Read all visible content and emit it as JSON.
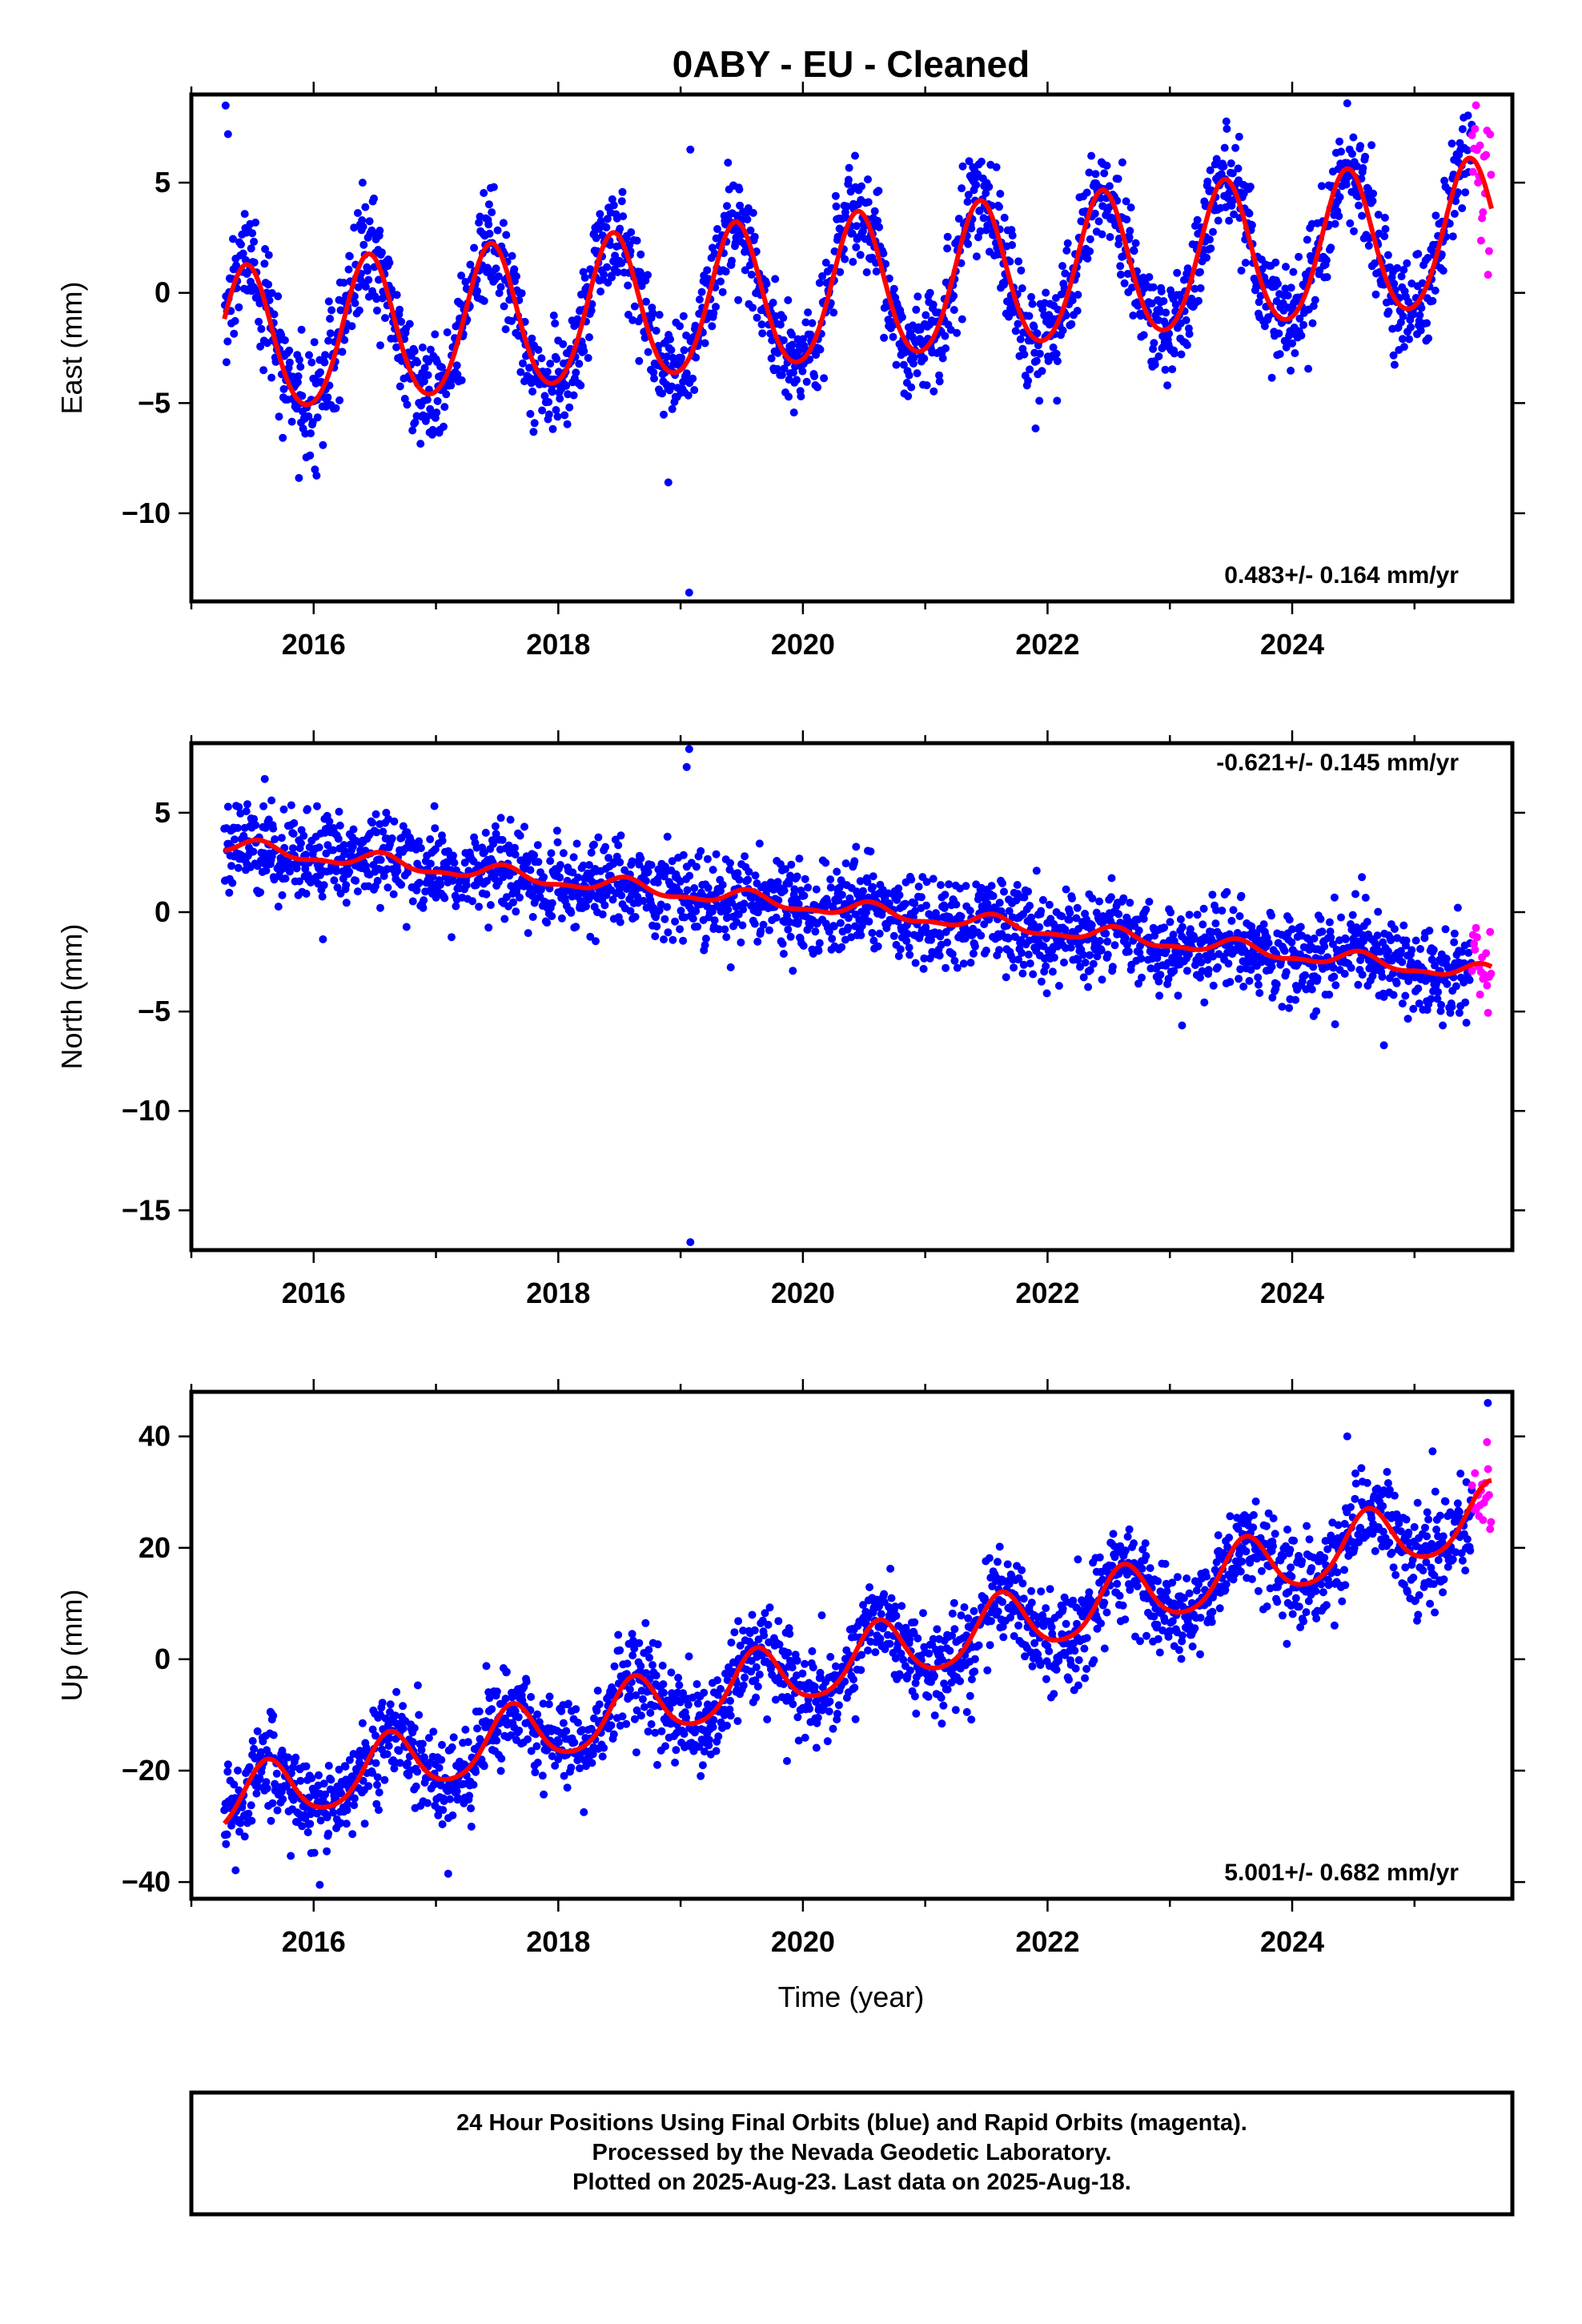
{
  "title": "0ABY  - EU - Cleaned",
  "xlabel": "Time (year)",
  "footer": {
    "line1": "24 Hour Positions Using Final Orbits (blue) and Rapid Orbits (magenta).",
    "line2": "Processed by the Nevada Geodetic Laboratory.",
    "line3": "Plotted on 2025-Aug-23. Last data on 2025-Aug-18."
  },
  "colors": {
    "final": "#0000ff",
    "rapid": "#ff00ff",
    "model": "#ff0000",
    "frame": "#000000"
  },
  "chart_data": [
    {
      "type": "scatter",
      "component": "east",
      "ylabel": "East (mm)",
      "rate_label": "0.483+/- 0.164 mm/yr",
      "xlim": [
        2015.0,
        2025.8
      ],
      "ylim": [
        -14,
        9
      ],
      "xticks": [
        2016,
        2018,
        2020,
        2022,
        2024
      ],
      "xtick_labels": [
        "2016",
        "2018",
        "2020",
        "2022",
        "2024"
      ],
      "yticks": [
        5,
        0,
        -5,
        -10
      ],
      "ytick_labels": [
        "5",
        "0",
        "−5",
        "−10"
      ],
      "x_start": 2015.27,
      "x_end_final": 2025.47,
      "x_end_rapid": 2025.63,
      "model": {
        "intercept_at_start": -2.4,
        "rate_mm_per_yr": 0.483,
        "annual_amplitude": 3.3,
        "annual_peak_year_fraction": 0.45,
        "semiannual_amplitude": 0.3
      },
      "scatter_sd": 1.2,
      "outliers": [
        [
          2015.28,
          8.5
        ],
        [
          2015.3,
          7.2
        ],
        [
          2019.07,
          -13.6
        ],
        [
          2019.08,
          6.5
        ],
        [
          2018.9,
          -8.6
        ],
        [
          2015.88,
          -8.4
        ],
        [
          2024.45,
          8.6
        ]
      ]
    },
    {
      "type": "scatter",
      "component": "north",
      "ylabel": "North (mm)",
      "rate_label": "-0.621+/- 0.145 mm/yr",
      "xlim": [
        2015.0,
        2025.8
      ],
      "ylim": [
        -17,
        8.5
      ],
      "xticks": [
        2016,
        2018,
        2020,
        2022,
        2024
      ],
      "xtick_labels": [
        "2016",
        "2018",
        "2020",
        "2022",
        "2024"
      ],
      "yticks": [
        5,
        0,
        -5,
        -10,
        -15
      ],
      "ytick_labels": [
        "5",
        "0",
        "−5",
        "−10",
        "−15"
      ],
      "x_start": 2015.27,
      "x_end_final": 2025.47,
      "x_end_rapid": 2025.63,
      "model": {
        "intercept_at_start": 3.3,
        "rate_mm_per_yr": -0.621,
        "annual_amplitude": 0.35,
        "annual_peak_year_fraction": 0.55,
        "semiannual_amplitude": 0.15
      },
      "scatter_sd": 1.1,
      "outliers": [
        [
          2019.07,
          8.2
        ],
        [
          2019.08,
          -16.6
        ],
        [
          2019.05,
          7.3
        ],
        [
          2024.75,
          -6.7
        ],
        [
          2015.6,
          6.7
        ],
        [
          2023.1,
          -5.7
        ]
      ]
    },
    {
      "type": "scatter",
      "component": "up",
      "ylabel": "Up (mm)",
      "rate_label": "5.001+/- 0.682 mm/yr",
      "xlim": [
        2015.0,
        2025.8
      ],
      "ylim": [
        -43,
        48
      ],
      "xticks": [
        2016,
        2018,
        2020,
        2022,
        2024
      ],
      "xtick_labels": [
        "2016",
        "2018",
        "2020",
        "2022",
        "2024"
      ],
      "yticks": [
        40,
        20,
        0,
        -20,
        -40
      ],
      "ytick_labels": [
        "40",
        "20",
        "0",
        "−20",
        "−40"
      ],
      "x_start": 2015.27,
      "x_end_final": 2025.47,
      "x_end_rapid": 2025.63,
      "model": {
        "intercept_at_start": -26.0,
        "rate_mm_per_yr": 5.001,
        "annual_amplitude": 5.5,
        "annual_peak_year_fraction": 0.62,
        "semiannual_amplitude": 0.8
      },
      "scatter_sd": 4.2,
      "outliers": [
        [
          2016.05,
          -40.5
        ],
        [
          2025.6,
          46.0
        ],
        [
          2024.45,
          40
        ],
        [
          2017.1,
          -38.5
        ]
      ]
    }
  ]
}
